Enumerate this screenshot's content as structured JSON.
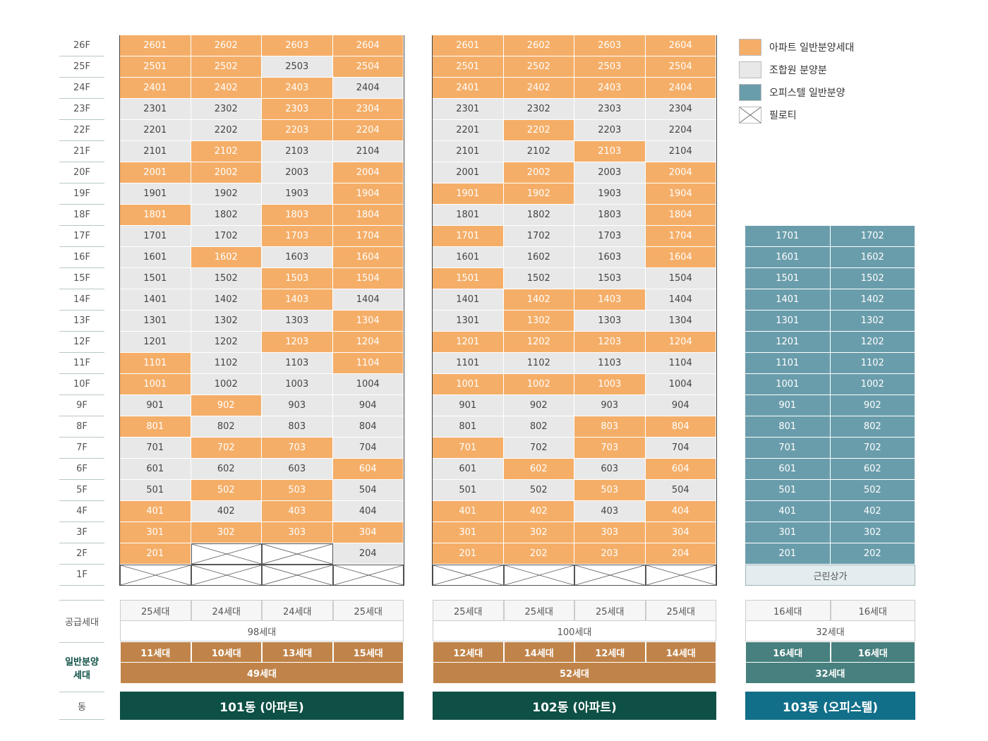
{
  "legend": [
    {
      "label": "아파트 일반분양세대",
      "code": "A",
      "color": "#f5ae68"
    },
    {
      "label": "조합원 분양분",
      "code": "U",
      "color": "#e8e8e8"
    },
    {
      "label": "오피스텔 일반분양",
      "code": "O",
      "color": "#6a9dab"
    },
    {
      "label": "필로티",
      "code": "P",
      "color": "#ffffff"
    }
  ],
  "floors": [
    "26F",
    "25F",
    "24F",
    "23F",
    "22F",
    "21F",
    "20F",
    "19F",
    "18F",
    "17F",
    "16F",
    "15F",
    "14F",
    "13F",
    "12F",
    "11F",
    "10F",
    "9F",
    "8F",
    "7F",
    "6F",
    "5F",
    "4F",
    "3F",
    "2F",
    "1F"
  ],
  "row_labels": {
    "supply": "공급세대",
    "general": "일반분양\n세대",
    "dong": "동"
  },
  "buildings": [
    {
      "name": "101동 (아파트)",
      "color": "#0e5045",
      "rows": [
        {
          "units": [
            "2601",
            "2602",
            "2603",
            "2604"
          ],
          "status": "AAAA"
        },
        {
          "units": [
            "2501",
            "2502",
            "2503",
            "2504"
          ],
          "status": "AAUA"
        },
        {
          "units": [
            "2401",
            "2402",
            "2403",
            "2404"
          ],
          "status": "AAAU"
        },
        {
          "units": [
            "2301",
            "2302",
            "2303",
            "2304"
          ],
          "status": "UUAA"
        },
        {
          "units": [
            "2201",
            "2202",
            "2203",
            "2204"
          ],
          "status": "UUAA"
        },
        {
          "units": [
            "2101",
            "2102",
            "2103",
            "2104"
          ],
          "status": "UAUU"
        },
        {
          "units": [
            "2001",
            "2002",
            "2003",
            "2004"
          ],
          "status": "AAUA"
        },
        {
          "units": [
            "1901",
            "1902",
            "1903",
            "1904"
          ],
          "status": "UUUA"
        },
        {
          "units": [
            "1801",
            "1802",
            "1803",
            "1804"
          ],
          "status": "AUAA"
        },
        {
          "units": [
            "1701",
            "1702",
            "1703",
            "1704"
          ],
          "status": "UUAA"
        },
        {
          "units": [
            "1601",
            "1602",
            "1603",
            "1604"
          ],
          "status": "UAUA"
        },
        {
          "units": [
            "1501",
            "1502",
            "1503",
            "1504"
          ],
          "status": "UUAA"
        },
        {
          "units": [
            "1401",
            "1402",
            "1403",
            "1404"
          ],
          "status": "UUAU"
        },
        {
          "units": [
            "1301",
            "1302",
            "1303",
            "1304"
          ],
          "status": "UUUA"
        },
        {
          "units": [
            "1201",
            "1202",
            "1203",
            "1204"
          ],
          "status": "UUAA"
        },
        {
          "units": [
            "1101",
            "1102",
            "1103",
            "1104"
          ],
          "status": "AUUA"
        },
        {
          "units": [
            "1001",
            "1002",
            "1003",
            "1004"
          ],
          "status": "AUUU"
        },
        {
          "units": [
            "901",
            "902",
            "903",
            "904"
          ],
          "status": "UAUU"
        },
        {
          "units": [
            "801",
            "802",
            "803",
            "804"
          ],
          "status": "AUUU"
        },
        {
          "units": [
            "701",
            "702",
            "703",
            "704"
          ],
          "status": "UAAU"
        },
        {
          "units": [
            "601",
            "602",
            "603",
            "604"
          ],
          "status": "UUUA"
        },
        {
          "units": [
            "501",
            "502",
            "503",
            "504"
          ],
          "status": "UAAU"
        },
        {
          "units": [
            "401",
            "402",
            "403",
            "404"
          ],
          "status": "AUAU"
        },
        {
          "units": [
            "301",
            "302",
            "303",
            "304"
          ],
          "status": "AAAA"
        },
        {
          "units": [
            "201",
            "",
            "",
            "204"
          ],
          "status": "APPU"
        },
        {
          "units": [
            "",
            "",
            "",
            ""
          ],
          "status": "PPPP"
        }
      ],
      "supply": [
        "25세대",
        "24세대",
        "24세대",
        "25세대"
      ],
      "supply_total": "98세대",
      "general": [
        "11세대",
        "10세대",
        "13세대",
        "15세대"
      ],
      "general_total": "49세대"
    },
    {
      "name": "102동 (아파트)",
      "color": "#0e5045",
      "rows": [
        {
          "units": [
            "2601",
            "2602",
            "2603",
            "2604"
          ],
          "status": "AAAA"
        },
        {
          "units": [
            "2501",
            "2502",
            "2503",
            "2504"
          ],
          "status": "AAAA"
        },
        {
          "units": [
            "2401",
            "2402",
            "2403",
            "2404"
          ],
          "status": "AAAA"
        },
        {
          "units": [
            "2301",
            "2302",
            "2303",
            "2304"
          ],
          "status": "UUUU"
        },
        {
          "units": [
            "2201",
            "2202",
            "2203",
            "2204"
          ],
          "status": "UAUU"
        },
        {
          "units": [
            "2101",
            "2102",
            "2103",
            "2104"
          ],
          "status": "UUAU"
        },
        {
          "units": [
            "2001",
            "2002",
            "2003",
            "2004"
          ],
          "status": "UAUA"
        },
        {
          "units": [
            "1901",
            "1902",
            "1903",
            "1904"
          ],
          "status": "AAUA"
        },
        {
          "units": [
            "1801",
            "1802",
            "1803",
            "1804"
          ],
          "status": "UUUA"
        },
        {
          "units": [
            "1701",
            "1702",
            "1703",
            "1704"
          ],
          "status": "AUUA"
        },
        {
          "units": [
            "1601",
            "1602",
            "1603",
            "1604"
          ],
          "status": "UUUA"
        },
        {
          "units": [
            "1501",
            "1502",
            "1503",
            "1504"
          ],
          "status": "AUUU"
        },
        {
          "units": [
            "1401",
            "1402",
            "1403",
            "1404"
          ],
          "status": "UAAU"
        },
        {
          "units": [
            "1301",
            "1302",
            "1303",
            "1304"
          ],
          "status": "UAUU"
        },
        {
          "units": [
            "1201",
            "1202",
            "1203",
            "1204"
          ],
          "status": "AAAA"
        },
        {
          "units": [
            "1101",
            "1102",
            "1103",
            "1104"
          ],
          "status": "UUUU"
        },
        {
          "units": [
            "1001",
            "1002",
            "1003",
            "1004"
          ],
          "status": "AAAU"
        },
        {
          "units": [
            "901",
            "902",
            "903",
            "904"
          ],
          "status": "UUUU"
        },
        {
          "units": [
            "801",
            "802",
            "803",
            "804"
          ],
          "status": "UUAA"
        },
        {
          "units": [
            "701",
            "702",
            "703",
            "704"
          ],
          "status": "AUAU"
        },
        {
          "units": [
            "601",
            "602",
            "603",
            "604"
          ],
          "status": "UAUA"
        },
        {
          "units": [
            "501",
            "502",
            "503",
            "504"
          ],
          "status": "UUAU"
        },
        {
          "units": [
            "401",
            "402",
            "403",
            "404"
          ],
          "status": "AAUA"
        },
        {
          "units": [
            "301",
            "302",
            "303",
            "304"
          ],
          "status": "AAAA"
        },
        {
          "units": [
            "201",
            "202",
            "203",
            "204"
          ],
          "status": "AAAA"
        },
        {
          "units": [
            "",
            "",
            "",
            ""
          ],
          "status": "PPPP"
        }
      ],
      "supply": [
        "25세대",
        "25세대",
        "25세대",
        "25세대"
      ],
      "supply_total": "100세대",
      "general": [
        "12세대",
        "14세대",
        "12세대",
        "14세대"
      ],
      "general_total": "52세대"
    },
    {
      "name": "103동 (오피스텔)",
      "color": "#126f8a",
      "rows": [
        {
          "units": [
            "1701",
            "1702"
          ],
          "status": "OO"
        },
        {
          "units": [
            "1601",
            "1602"
          ],
          "status": "OO"
        },
        {
          "units": [
            "1501",
            "1502"
          ],
          "status": "OO"
        },
        {
          "units": [
            "1401",
            "1402"
          ],
          "status": "OO"
        },
        {
          "units": [
            "1301",
            "1302"
          ],
          "status": "OO"
        },
        {
          "units": [
            "1201",
            "1202"
          ],
          "status": "OO"
        },
        {
          "units": [
            "1101",
            "1102"
          ],
          "status": "OO"
        },
        {
          "units": [
            "1001",
            "1002"
          ],
          "status": "OO"
        },
        {
          "units": [
            "901",
            "902"
          ],
          "status": "OO"
        },
        {
          "units": [
            "801",
            "802"
          ],
          "status": "OO"
        },
        {
          "units": [
            "701",
            "702"
          ],
          "status": "OO"
        },
        {
          "units": [
            "601",
            "602"
          ],
          "status": "OO"
        },
        {
          "units": [
            "501",
            "502"
          ],
          "status": "OO"
        },
        {
          "units": [
            "401",
            "402"
          ],
          "status": "OO"
        },
        {
          "units": [
            "301",
            "302"
          ],
          "status": "OO"
        },
        {
          "units": [
            "201",
            "202"
          ],
          "status": "OO"
        }
      ],
      "ground_floor": "근린상가",
      "supply": [
        "16세대",
        "16세대"
      ],
      "supply_total": "32세대",
      "general": [
        "16세대",
        "16세대"
      ],
      "general_total": "32세대"
    }
  ]
}
